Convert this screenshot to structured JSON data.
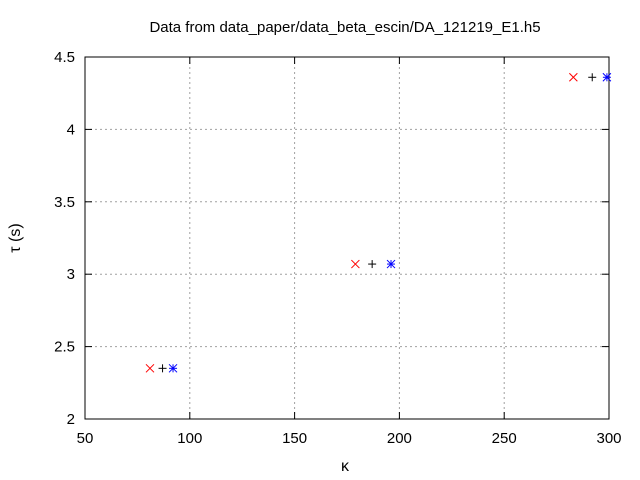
{
  "chart_data": {
    "type": "scatter",
    "title": "Data from data_paper/data_beta_escin/DA_121219_E1.h5",
    "xlabel": "κ",
    "ylabel": "τ (s)",
    "xlim": [
      50,
      300
    ],
    "ylim": [
      2,
      4.5
    ],
    "xticks": [
      50,
      100,
      150,
      200,
      250,
      300
    ],
    "yticks": [
      2,
      2.5,
      3,
      3.5,
      4,
      4.5
    ],
    "xtick_labels": [
      "50",
      "100",
      "150",
      "200",
      "250",
      "300"
    ],
    "ytick_labels": [
      "2",
      "2.5",
      "3",
      "3.5",
      "4",
      "4.5"
    ],
    "grid": true,
    "series": [
      {
        "marker": "x",
        "color": "#ff0000",
        "points": [
          [
            81,
            2.35
          ],
          [
            179,
            3.07
          ],
          [
            283,
            4.36
          ]
        ]
      },
      {
        "marker": "plus",
        "color": "#000000",
        "points": [
          [
            87,
            2.35
          ],
          [
            187,
            3.07
          ],
          [
            292,
            4.36
          ]
        ]
      },
      {
        "marker": "star",
        "color": "#0000ff",
        "points": [
          [
            92,
            2.35
          ],
          [
            196,
            3.07
          ],
          [
            299,
            4.36
          ]
        ]
      }
    ]
  }
}
